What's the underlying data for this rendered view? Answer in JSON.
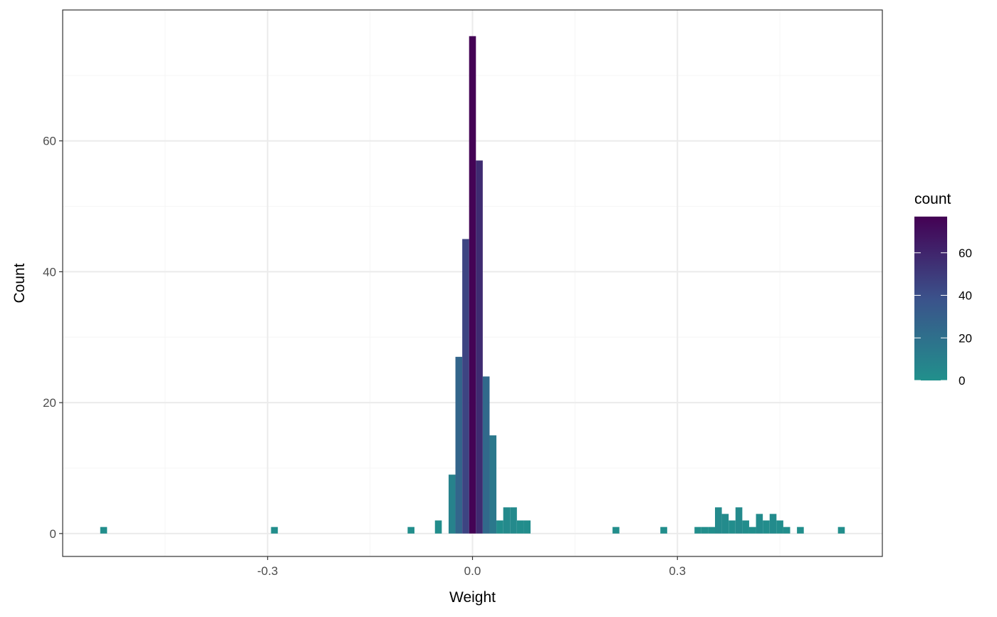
{
  "chart_data": {
    "type": "bar",
    "xlabel": "Weight",
    "ylabel": "Count",
    "xlim": [
      -0.6,
      0.6
    ],
    "ylim": [
      -3.5,
      80
    ],
    "x_major_ticks": [
      -0.3,
      0.0,
      0.3
    ],
    "x_tick_labels": [
      "-0.3",
      "0.0",
      "0.3"
    ],
    "x_minor_ticks": [
      -0.45,
      -0.15,
      0.15,
      0.45
    ],
    "y_major_ticks": [
      0,
      20,
      40,
      60
    ],
    "y_tick_labels": [
      "0",
      "20",
      "40",
      "60"
    ],
    "y_minor_ticks": [
      10,
      30,
      50,
      70
    ],
    "grid": true,
    "binwidth": 0.01,
    "bins": [
      {
        "x": -0.54,
        "count": 1
      },
      {
        "x": -0.29,
        "count": 1
      },
      {
        "x": -0.09,
        "count": 1
      },
      {
        "x": -0.05,
        "count": 2
      },
      {
        "x": -0.03,
        "count": 9
      },
      {
        "x": -0.02,
        "count": 27
      },
      {
        "x": -0.01,
        "count": 45
      },
      {
        "x": 0.0,
        "count": 76
      },
      {
        "x": 0.01,
        "count": 57
      },
      {
        "x": 0.02,
        "count": 24
      },
      {
        "x": 0.03,
        "count": 15
      },
      {
        "x": 0.04,
        "count": 2
      },
      {
        "x": 0.05,
        "count": 4
      },
      {
        "x": 0.06,
        "count": 4
      },
      {
        "x": 0.07,
        "count": 2
      },
      {
        "x": 0.08,
        "count": 2
      },
      {
        "x": 0.21,
        "count": 1
      },
      {
        "x": 0.28,
        "count": 1
      },
      {
        "x": 0.33,
        "count": 1
      },
      {
        "x": 0.34,
        "count": 1
      },
      {
        "x": 0.35,
        "count": 1
      },
      {
        "x": 0.36,
        "count": 4
      },
      {
        "x": 0.37,
        "count": 3
      },
      {
        "x": 0.38,
        "count": 2
      },
      {
        "x": 0.39,
        "count": 4
      },
      {
        "x": 0.4,
        "count": 2
      },
      {
        "x": 0.41,
        "count": 1
      },
      {
        "x": 0.42,
        "count": 3
      },
      {
        "x": 0.43,
        "count": 2
      },
      {
        "x": 0.44,
        "count": 3
      },
      {
        "x": 0.45,
        "count": 2
      },
      {
        "x": 0.46,
        "count": 1
      },
      {
        "x": 0.48,
        "count": 1
      },
      {
        "x": 0.54,
        "count": 1
      }
    ],
    "legend": {
      "title": "count",
      "placement": "right",
      "scale": "viridis",
      "range": [
        0,
        77
      ],
      "breaks": [
        0,
        20,
        40,
        60
      ],
      "break_labels": [
        "0",
        "20",
        "40",
        "60"
      ]
    },
    "colors": {
      "low": "#21908C",
      "mid": "#3B528B",
      "high": "#440154",
      "panel_border": "#333333",
      "grid_major": "#EBEBEB",
      "grid_minor": "#F5F5F5"
    }
  }
}
